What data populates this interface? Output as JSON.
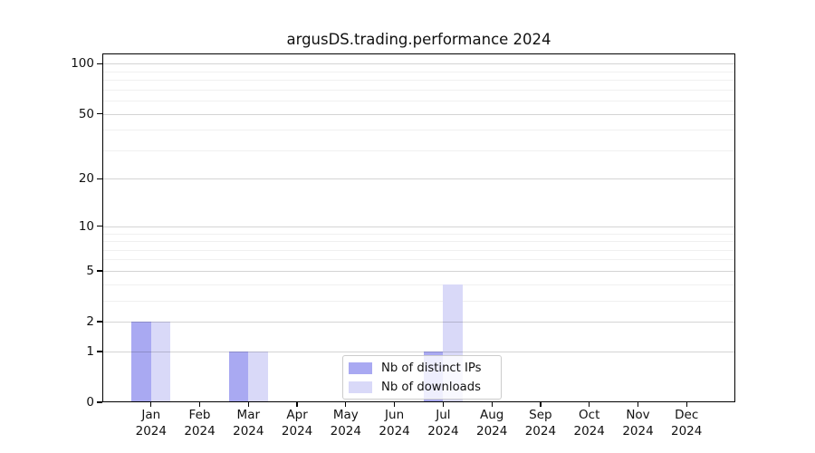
{
  "chart_data": {
    "type": "bar",
    "title": "argusDS.trading.performance 2024",
    "x_tick_labels": [
      [
        "Jan",
        "2024"
      ],
      [
        "Feb",
        "2024"
      ],
      [
        "Mar",
        "2024"
      ],
      [
        "Apr",
        "2024"
      ],
      [
        "May",
        "2024"
      ],
      [
        "Jun",
        "2024"
      ],
      [
        "Jul",
        "2024"
      ],
      [
        "Aug",
        "2024"
      ],
      [
        "Sep",
        "2024"
      ],
      [
        "Oct",
        "2024"
      ],
      [
        "Nov",
        "2024"
      ],
      [
        "Dec",
        "2024"
      ]
    ],
    "series": [
      {
        "name": "Nb of distinct IPs",
        "color": "#a9a9f2",
        "values": [
          2,
          0,
          1,
          0,
          0,
          0,
          1,
          0,
          0,
          0,
          0,
          0
        ]
      },
      {
        "name": "Nb of downloads",
        "color": "#d9d9f8",
        "values": [
          2,
          0,
          1,
          0,
          0,
          0,
          4,
          0,
          0,
          0,
          0,
          0
        ]
      }
    ],
    "y_axis": {
      "scale": "log1p",
      "major_ticks": [
        0,
        1,
        2,
        5,
        10,
        20,
        50,
        100
      ],
      "minor_ticks": [
        3,
        4,
        6,
        7,
        8,
        9,
        30,
        40,
        60,
        70,
        80,
        90
      ],
      "range_max": 115
    },
    "grid": {
      "major": true,
      "minor": true,
      "grid_above_bars": true
    },
    "legend": {
      "position": "lower-center"
    }
  }
}
